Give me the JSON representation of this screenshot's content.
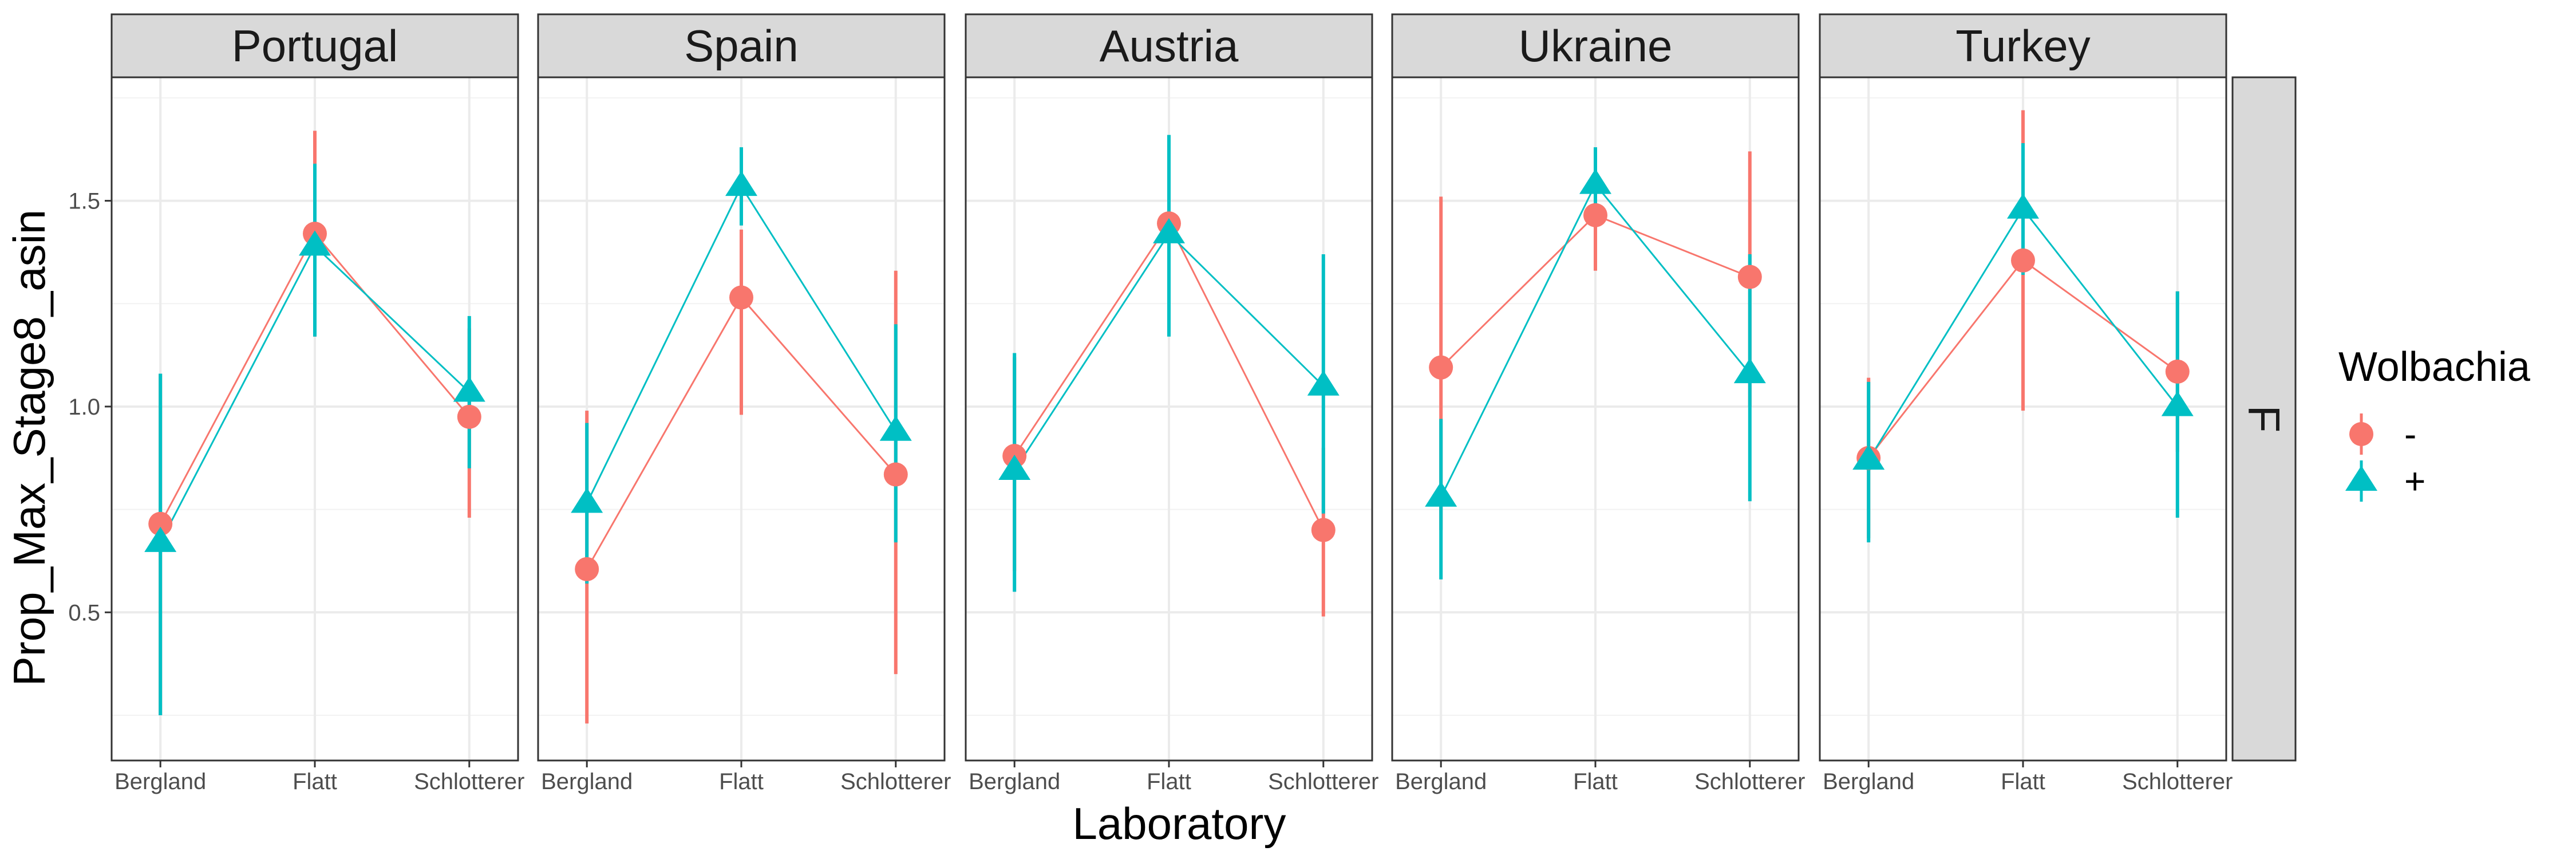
{
  "chart_data": {
    "type": "line",
    "xlabel": "Laboratory",
    "ylabel": "Prop_Max_Stage8_asin",
    "categories": [
      "Bergland",
      "Flatt",
      "Schlotterer"
    ],
    "ylim": [
      0.14,
      1.8
    ],
    "yticks": [
      0.5,
      1.0,
      1.5
    ],
    "ytick_labels": [
      "0.5",
      "1.0",
      "1.5"
    ],
    "grid": true,
    "row_strip": "F",
    "colors": {
      "minus": "#F8766D",
      "plus": "#00BFC4"
    },
    "legend": {
      "title": "Wolbachia",
      "position": "right",
      "entries": [
        {
          "label": "-",
          "color": "#F8766D",
          "shape": "circle"
        },
        {
          "label": "+",
          "color": "#00BFC4",
          "shape": "triangle"
        }
      ]
    },
    "facets": [
      {
        "name": "Portugal",
        "series": [
          {
            "name": "-",
            "values": [
              0.715,
              1.42,
              0.975
            ],
            "lower": [
              0.25,
              1.17,
              0.73
            ],
            "upper": [
              1.08,
              1.67,
              1.19
            ]
          },
          {
            "name": "+",
            "values": [
              0.67,
              1.39,
              1.035
            ],
            "lower": [
              0.25,
              1.17,
              0.85
            ],
            "upper": [
              1.08,
              1.59,
              1.22
            ]
          }
        ]
      },
      {
        "name": "Spain",
        "series": [
          {
            "name": "-",
            "values": [
              0.605,
              1.265,
              0.835
            ],
            "lower": [
              0.23,
              0.98,
              0.35
            ],
            "upper": [
              0.99,
              1.43,
              1.33
            ]
          },
          {
            "name": "+",
            "values": [
              0.765,
              1.535,
              0.94
            ],
            "lower": [
              0.57,
              1.44,
              0.67
            ],
            "upper": [
              0.96,
              1.63,
              1.2
            ]
          }
        ]
      },
      {
        "name": "Austria",
        "series": [
          {
            "name": "-",
            "values": [
              0.88,
              1.445,
              0.7
            ],
            "lower": [
              0.6,
              1.2,
              0.49
            ],
            "upper": [
              1.12,
              1.61,
              0.9
            ]
          },
          {
            "name": "+",
            "values": [
              0.845,
              1.42,
              1.05
            ],
            "lower": [
              0.55,
              1.17,
              0.74
            ],
            "upper": [
              1.13,
              1.66,
              1.37
            ]
          }
        ]
      },
      {
        "name": "Ukraine",
        "series": [
          {
            "name": "-",
            "values": [
              1.095,
              1.465,
              1.315
            ],
            "lower": [
              0.7,
              1.33,
              1.0
            ],
            "upper": [
              1.51,
              1.6,
              1.62
            ]
          },
          {
            "name": "+",
            "values": [
              0.78,
              1.54,
              1.08
            ],
            "lower": [
              0.58,
              1.45,
              0.77
            ],
            "upper": [
              0.97,
              1.63,
              1.37
            ]
          }
        ]
      },
      {
        "name": "Turkey",
        "series": [
          {
            "name": "-",
            "values": [
              0.875,
              1.355,
              1.085
            ],
            "lower": [
              0.68,
              0.99,
              0.89
            ],
            "upper": [
              1.07,
              1.72,
              1.28
            ]
          },
          {
            "name": "+",
            "values": [
              0.87,
              1.48,
              1.0
            ],
            "lower": [
              0.67,
              1.32,
              0.73
            ],
            "upper": [
              1.06,
              1.64,
              1.28
            ]
          }
        ]
      }
    ]
  }
}
